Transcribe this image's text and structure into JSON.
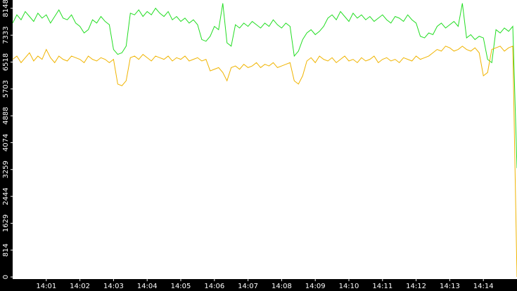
{
  "chart_data": {
    "type": "line",
    "x": [
      840,
      840.125,
      840.25,
      840.375,
      840.5,
      840.625,
      840.75,
      840.875,
      841,
      841.125,
      841.25,
      841.375,
      841.5,
      841.625,
      841.75,
      841.875,
      842,
      842.125,
      842.25,
      842.375,
      842.5,
      842.625,
      842.75,
      842.875,
      843,
      843.125,
      843.25,
      843.375,
      843.5,
      843.625,
      843.75,
      843.875,
      844,
      844.125,
      844.25,
      844.375,
      844.5,
      844.625,
      844.75,
      844.875,
      845,
      845.125,
      845.25,
      845.375,
      845.5,
      845.625,
      845.75,
      845.875,
      846,
      846.125,
      846.25,
      846.375,
      846.5,
      846.625,
      846.75,
      846.875,
      847,
      847.125,
      847.25,
      847.375,
      847.5,
      847.625,
      847.75,
      847.875,
      848,
      848.125,
      848.25,
      848.375,
      848.5,
      848.625,
      848.75,
      848.875,
      849,
      849.125,
      849.25,
      849.375,
      849.5,
      849.625,
      849.75,
      849.875,
      850,
      850.125,
      850.25,
      850.375,
      850.5,
      850.625,
      850.75,
      850.875,
      851,
      851.125,
      851.25,
      851.375,
      851.5,
      851.625,
      851.75,
      851.875,
      852,
      852.125,
      852.25,
      852.375,
      852.5,
      852.625,
      852.75,
      852.875,
      853,
      853.125,
      853.25,
      853.375,
      853.5,
      853.625,
      853.75,
      853.875,
      854,
      854.125,
      854.25,
      854.375,
      854.5,
      854.625,
      854.75,
      854.875,
      855
    ],
    "series": [
      {
        "color": "#22dd22",
        "values": [
          7700,
          7950,
          7800,
          8050,
          7900,
          7750,
          8000,
          7850,
          7950,
          7700,
          7900,
          8100,
          7850,
          7800,
          7950,
          7700,
          7600,
          7400,
          7500,
          7800,
          7700,
          7900,
          7750,
          7650,
          6900,
          6750,
          6800,
          7000,
          8000,
          7950,
          8100,
          7900,
          8050,
          7950,
          8150,
          8000,
          7900,
          8050,
          7800,
          7900,
          7750,
          7850,
          7700,
          7800,
          7650,
          7200,
          7150,
          7300,
          7600,
          7500,
          8300,
          7100,
          7000,
          7650,
          7550,
          7700,
          7600,
          7750,
          7650,
          7550,
          7700,
          7600,
          7800,
          7650,
          7550,
          7700,
          7600,
          6700,
          6850,
          7200,
          7400,
          7500,
          7350,
          7450,
          7600,
          7850,
          7950,
          7800,
          8050,
          7900,
          7750,
          8000,
          7850,
          7950,
          7800,
          7900,
          7750,
          7850,
          7950,
          7800,
          7700,
          7900,
          7850,
          7750,
          7950,
          7800,
          7700,
          7300,
          7250,
          7400,
          7350,
          7600,
          7700,
          7550,
          7650,
          7750,
          7600,
          8300,
          7250,
          7350,
          7200,
          7300,
          7250,
          6600,
          6500,
          7500,
          7400,
          7550,
          7450,
          7600,
          3300
        ]
      },
      {
        "color": "#f0b400",
        "values": [
          6600,
          6700,
          6500,
          6650,
          6800,
          6550,
          6700,
          6600,
          6900,
          6650,
          6500,
          6700,
          6600,
          6550,
          6700,
          6650,
          6600,
          6500,
          6700,
          6600,
          6550,
          6650,
          6600,
          6500,
          6600,
          5850,
          5800,
          5950,
          6650,
          6700,
          6600,
          6750,
          6650,
          6550,
          6700,
          6650,
          6600,
          6700,
          6550,
          6650,
          6600,
          6700,
          6550,
          6600,
          6650,
          6550,
          6600,
          6250,
          6300,
          6350,
          6200,
          5950,
          6350,
          6400,
          6300,
          6450,
          6350,
          6400,
          6500,
          6350,
          6450,
          6400,
          6500,
          6350,
          6400,
          6450,
          6500,
          5950,
          5850,
          6100,
          6550,
          6650,
          6500,
          6700,
          6600,
          6550,
          6650,
          6500,
          6600,
          6700,
          6550,
          6600,
          6500,
          6650,
          6550,
          6600,
          6700,
          6500,
          6600,
          6650,
          6550,
          6600,
          6500,
          6650,
          6600,
          6550,
          6700,
          6600,
          6650,
          6700,
          6800,
          6900,
          6850,
          7000,
          6950,
          6850,
          6900,
          7000,
          6900,
          6850,
          6950,
          6800,
          6100,
          6200,
          6900,
          6950,
          7000,
          6850,
          6950,
          7000,
          0
        ]
      }
    ],
    "xlim": [
      840,
      855
    ],
    "xticks": [
      {
        "value": 841,
        "label": "14:01"
      },
      {
        "value": 842,
        "label": "14:02"
      },
      {
        "value": 843,
        "label": "14:03"
      },
      {
        "value": 844,
        "label": "14:04"
      },
      {
        "value": 845,
        "label": "14:05"
      },
      {
        "value": 846,
        "label": "14:06"
      },
      {
        "value": 847,
        "label": "14:07"
      },
      {
        "value": 848,
        "label": "14:08"
      },
      {
        "value": 849,
        "label": "14:09"
      },
      {
        "value": 850,
        "label": "14:10"
      },
      {
        "value": 851,
        "label": "14:11"
      },
      {
        "value": 852,
        "label": "14:12"
      },
      {
        "value": 853,
        "label": "14:13"
      },
      {
        "value": 854,
        "label": "14:14"
      }
    ],
    "ylim": [
      0,
      8400
    ],
    "yticks": [
      0,
      814,
      1629,
      2444,
      3259,
      4074,
      4888,
      5703,
      6518,
      7333,
      8148
    ]
  }
}
